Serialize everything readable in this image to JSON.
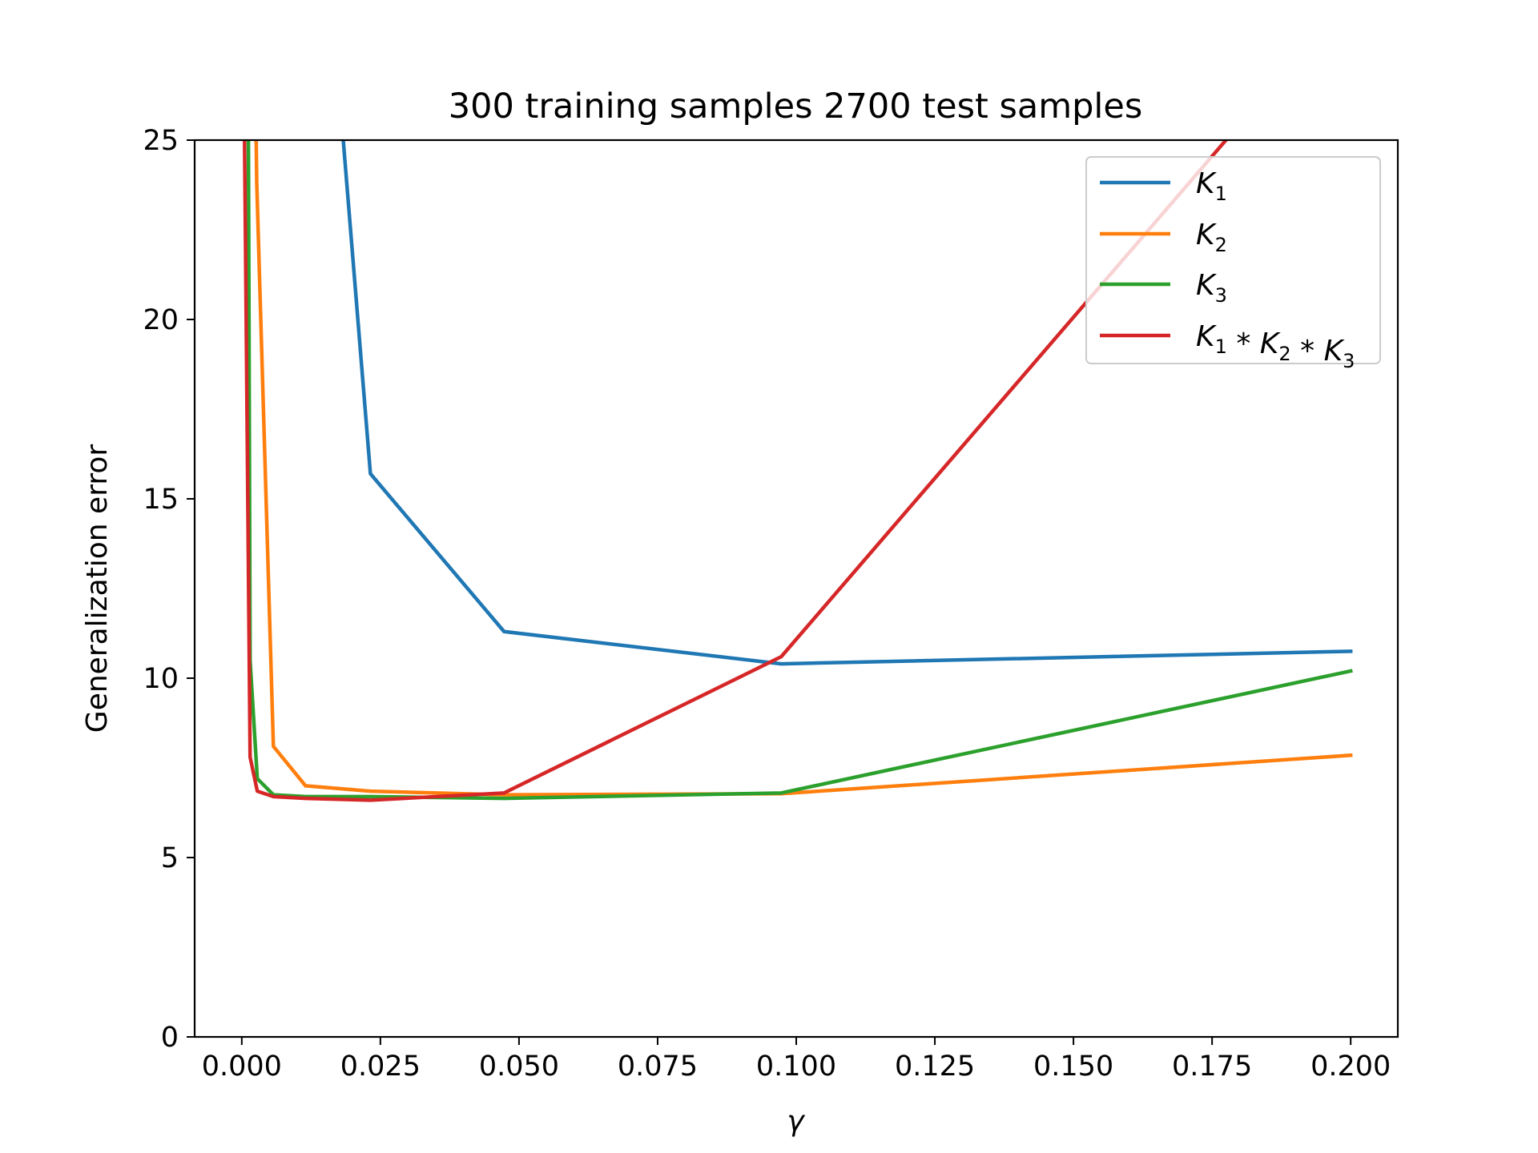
{
  "chart_data": {
    "type": "line",
    "title": "300 training samples 2700 test samples",
    "xlabel": "γ",
    "ylabel": "Generalization error",
    "xlim": [
      -0.0085,
      0.2085
    ],
    "ylim": [
      0,
      25
    ],
    "xticks": [
      0.0,
      0.025,
      0.05,
      0.075,
      0.1,
      0.125,
      0.15,
      0.175,
      0.2
    ],
    "xtick_labels": [
      "0.000",
      "0.025",
      "0.050",
      "0.075",
      "0.100",
      "0.125",
      "0.150",
      "0.175",
      "0.200"
    ],
    "yticks": [
      0,
      5,
      10,
      15,
      20,
      25
    ],
    "ytick_labels": [
      "0",
      "5",
      "10",
      "15",
      "20",
      "25"
    ],
    "grid": false,
    "legend_position": "top-right",
    "series": [
      {
        "name": "K1",
        "label": {
          "base": "K",
          "sub": "1"
        },
        "color": "#1f77b4",
        "x": [
          0.0183,
          0.0232,
          0.0473,
          0.0973,
          0.2
        ],
        "y": [
          25.0,
          15.7,
          11.3,
          10.4,
          10.75
        ]
      },
      {
        "name": "K2",
        "label": {
          "base": "K",
          "sub": "2"
        },
        "color": "#ff7f0e",
        "x": [
          0.0026,
          0.0027,
          0.0057,
          0.0115,
          0.0232,
          0.0473,
          0.0973,
          0.2
        ],
        "y": [
          25.0,
          23.8,
          8.1,
          7.0,
          6.85,
          6.75,
          6.78,
          7.85
        ]
      },
      {
        "name": "K3",
        "label": {
          "base": "K",
          "sub": "3"
        },
        "color": "#2ca02c",
        "x": [
          0.0012,
          0.0015,
          0.0028,
          0.0057,
          0.0115,
          0.0232,
          0.0473,
          0.0973,
          0.2
        ],
        "y": [
          25.0,
          10.5,
          7.2,
          6.75,
          6.7,
          6.7,
          6.65,
          6.8,
          10.2
        ]
      },
      {
        "name": "K1*K2*K3",
        "label": {
          "parts": [
            {
              "base": "K",
              "sub": "1"
            },
            {
              "base": "K",
              "sub": "2"
            },
            {
              "base": "K",
              "sub": "3"
            }
          ],
          "sep": " * "
        },
        "color": "#d62728",
        "x": [
          0.0005,
          0.0015,
          0.0028,
          0.0057,
          0.0115,
          0.0232,
          0.0473,
          0.0973,
          0.1775
        ],
        "y": [
          25.0,
          7.8,
          6.85,
          6.7,
          6.65,
          6.6,
          6.8,
          10.6,
          25.0
        ]
      }
    ]
  }
}
